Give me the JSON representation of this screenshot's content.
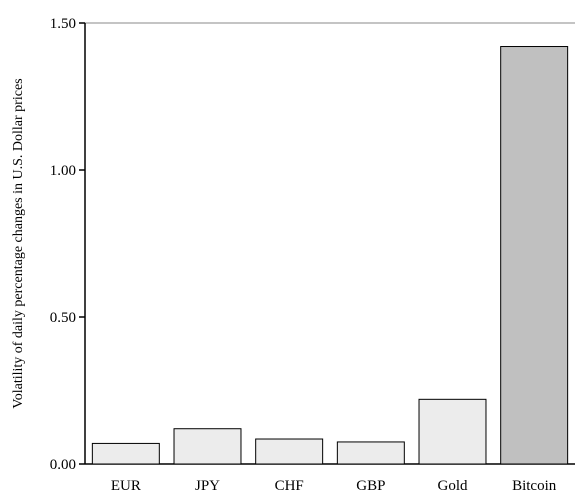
{
  "chart_data": {
    "type": "bar",
    "categories": [
      "EUR",
      "JPY",
      "CHF",
      "GBP",
      "Gold",
      "Bitcoin"
    ],
    "values": [
      0.07,
      0.12,
      0.085,
      0.075,
      0.22,
      1.42
    ],
    "title": "",
    "xlabel": "",
    "ylabel": "Volatility of daily percentage changes in U.S. Dollar prices",
    "ylim": [
      0,
      1.5
    ],
    "yticks": [
      0,
      0.5,
      1.0,
      1.5
    ],
    "ytick_labels": [
      "0.00",
      "0.50",
      "1.00",
      "1.50"
    ],
    "grid": false,
    "colors": {
      "default_bar": "#ececec",
      "highlight_bar": "#c0c0c0",
      "highlight_category": "Bitcoin",
      "axis": "#000000",
      "top_border": "#888888"
    }
  }
}
